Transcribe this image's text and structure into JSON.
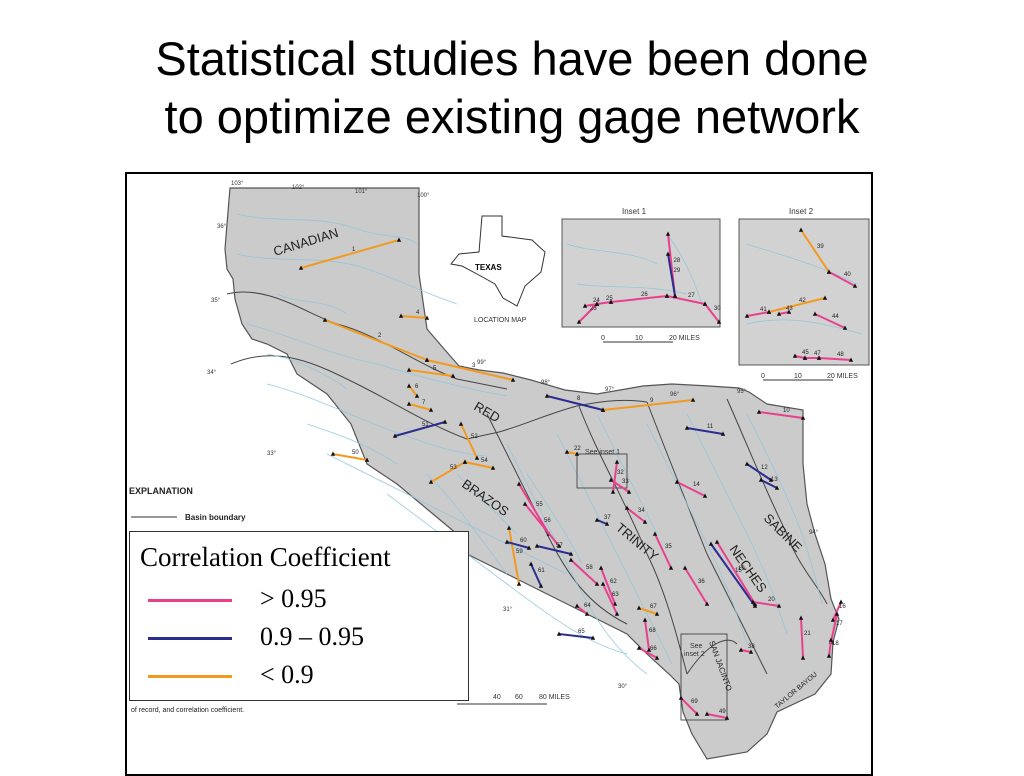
{
  "slide": {
    "title_line1": "Statistical studies have been done",
    "title_line2": "to optimize existing gage network"
  },
  "map": {
    "basin_labels": [
      "CANADIAN",
      "RED",
      "BRAZOS",
      "TRINITY",
      "NECHES",
      "SABINE",
      "SAN JACINTO",
      "TAYLOR BAYOU"
    ],
    "inset_1_title": "Inset 1",
    "inset_2_title": "Inset 2",
    "inset_1_scale": [
      "0",
      "10",
      "20 MILES"
    ],
    "inset_2_scale": [
      "0",
      "10",
      "20 MILES"
    ],
    "location_map_label": "LOCATION MAP",
    "location_map_state": "TEXAS",
    "explanation_heading": "EXPLANATION",
    "basin_boundary_label": "Basin  boundary",
    "main_scale": [
      "40",
      "60",
      "80 MILES"
    ],
    "caption_fragment": "of record, and correlation coefficient.",
    "see_inset_1": "See inset 1",
    "see_inset_2_a": "See",
    "see_inset_2_b": "inset 2",
    "longitudes": [
      "103°",
      "102°",
      "101°",
      "100°",
      "99°",
      "98°",
      "97°",
      "96°",
      "95°",
      "94°"
    ],
    "latitudes": [
      "36°",
      "35°",
      "34°",
      "33°",
      "31°",
      "30°"
    ],
    "colors": {
      "high": "#e8408f",
      "mid": "#2b2d8f",
      "low": "#f39a1e",
      "basin_fill": "#cbcbcb",
      "river": "#8fc6dd",
      "inset_fill": "#d2d2d2"
    },
    "segments_main": [
      {
        "id": "1",
        "class": "low"
      },
      {
        "id": "2",
        "class": "low"
      },
      {
        "id": "3",
        "class": "low"
      },
      {
        "id": "4",
        "class": "low"
      },
      {
        "id": "5",
        "class": "low"
      },
      {
        "id": "6",
        "class": "low"
      },
      {
        "id": "7",
        "class": "low"
      },
      {
        "id": "8",
        "class": "mid"
      },
      {
        "id": "9",
        "class": "low"
      },
      {
        "id": "10",
        "class": "high"
      },
      {
        "id": "11",
        "class": "mid"
      },
      {
        "id": "12",
        "class": "mid"
      },
      {
        "id": "13",
        "class": "mid"
      },
      {
        "id": "14",
        "class": "high"
      },
      {
        "id": "15",
        "class": "mid"
      },
      {
        "id": "16",
        "class": "high"
      },
      {
        "id": "17",
        "class": "high"
      },
      {
        "id": "18",
        "class": "high"
      },
      {
        "id": "19",
        "class": "high"
      },
      {
        "id": "20",
        "class": "high"
      },
      {
        "id": "21",
        "class": "high"
      },
      {
        "id": "22",
        "class": "low"
      },
      {
        "id": "32",
        "class": "high"
      },
      {
        "id": "33",
        "class": "high"
      },
      {
        "id": "34",
        "class": "high"
      },
      {
        "id": "35",
        "class": "high"
      },
      {
        "id": "36",
        "class": "high"
      },
      {
        "id": "37",
        "class": "mid"
      },
      {
        "id": "38",
        "class": "high"
      },
      {
        "id": "49",
        "class": "high"
      },
      {
        "id": "50",
        "class": "low"
      },
      {
        "id": "51",
        "class": "mid"
      },
      {
        "id": "52",
        "class": "low"
      },
      {
        "id": "53",
        "class": "low"
      },
      {
        "id": "54",
        "class": "low"
      },
      {
        "id": "55",
        "class": "high"
      },
      {
        "id": "56",
        "class": "high"
      },
      {
        "id": "57",
        "class": "mid"
      },
      {
        "id": "58",
        "class": "high"
      },
      {
        "id": "59",
        "class": "low"
      },
      {
        "id": "60",
        "class": "mid"
      },
      {
        "id": "61",
        "class": "mid"
      },
      {
        "id": "62",
        "class": "high"
      },
      {
        "id": "63",
        "class": "high"
      },
      {
        "id": "64",
        "class": "high"
      },
      {
        "id": "65",
        "class": "mid"
      },
      {
        "id": "66",
        "class": "high"
      },
      {
        "id": "67",
        "class": "low"
      },
      {
        "id": "68",
        "class": "high"
      },
      {
        "id": "69",
        "class": "high"
      }
    ],
    "segments_inset_1": [
      {
        "id": "23",
        "class": "high"
      },
      {
        "id": "24",
        "class": "high"
      },
      {
        "id": "25",
        "class": "high"
      },
      {
        "id": "26",
        "class": "high"
      },
      {
        "id": "27",
        "class": "high"
      },
      {
        "id": "28",
        "class": "high"
      },
      {
        "id": "29",
        "class": "mid"
      },
      {
        "id": "30",
        "class": "high"
      }
    ],
    "segments_inset_2": [
      {
        "id": "39",
        "class": "low"
      },
      {
        "id": "40",
        "class": "high"
      },
      {
        "id": "41",
        "class": "high"
      },
      {
        "id": "42",
        "class": "low"
      },
      {
        "id": "43",
        "class": "high"
      },
      {
        "id": "44",
        "class": "high"
      },
      {
        "id": "45",
        "class": "high"
      },
      {
        "id": "47",
        "class": "high"
      },
      {
        "id": "48",
        "class": "high"
      }
    ]
  },
  "legend": {
    "title": "Correlation Coefficient",
    "items": [
      {
        "label": "> 0.95",
        "color": "#e8408f"
      },
      {
        "label": "0.9 – 0.95",
        "color": "#2b2d8f"
      },
      {
        "label": "< 0.9",
        "color": "#f39a1e"
      }
    ]
  }
}
